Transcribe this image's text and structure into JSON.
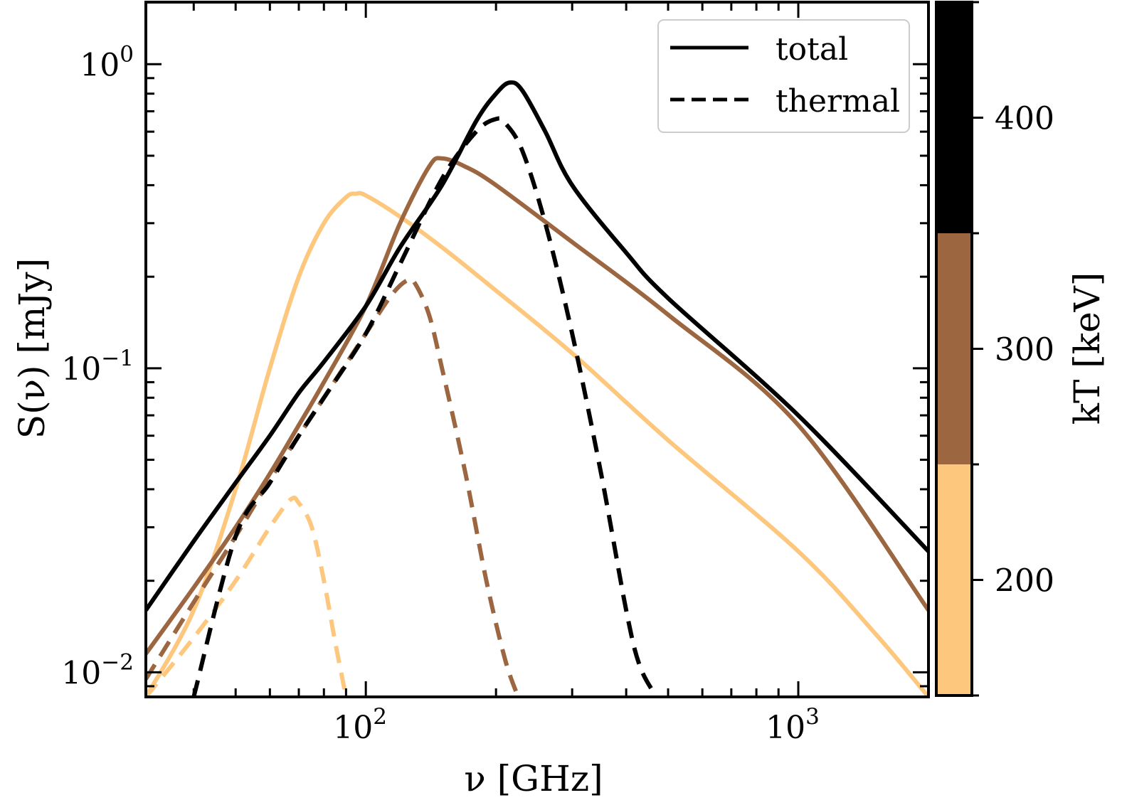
{
  "chart_data": {
    "type": "line",
    "xscale": "log",
    "yscale": "log",
    "xlabel": "ν [GHz]",
    "ylabel": "S(ν) [mJy]",
    "xlim": [
      31,
      2000
    ],
    "ylim": [
      0.0083,
      1.6
    ],
    "x_ticks": [
      {
        "value": 100,
        "base": "10",
        "exp": "2"
      },
      {
        "value": 1000,
        "base": "10",
        "exp": "3"
      }
    ],
    "y_ticks": [
      {
        "value": 0.01,
        "base": "10",
        "exp": "−2"
      },
      {
        "value": 0.1,
        "base": "10",
        "exp": "−1"
      },
      {
        "value": 1,
        "base": "10",
        "exp": "0"
      }
    ],
    "legend": {
      "location": "top-right",
      "entries": [
        {
          "label": "total",
          "style": "solid"
        },
        {
          "label": "thermal",
          "style": "dashed"
        }
      ]
    },
    "colorbar": {
      "label": "kT [keV]",
      "range": [
        150,
        450
      ],
      "ticks": [
        200,
        300,
        400
      ],
      "bins": [
        {
          "from": 150,
          "to": 250,
          "color": "#fec77e"
        },
        {
          "from": 250,
          "to": 350,
          "color": "#9b6640"
        },
        {
          "from": 350,
          "to": 450,
          "color": "#000000"
        }
      ]
    },
    "series": [
      {
        "name": "total kT=200 keV",
        "kT": 200,
        "style": "solid",
        "color": "#fec77e",
        "x": [
          31,
          40,
          50,
          60,
          70,
          80,
          90,
          95,
          100,
          120,
          150,
          200,
          300,
          500,
          1000,
          1500,
          2000
        ],
        "y": [
          0.0083,
          0.016,
          0.04,
          0.1,
          0.2,
          0.3,
          0.365,
          0.375,
          0.37,
          0.315,
          0.25,
          0.18,
          0.112,
          0.058,
          0.025,
          0.0135,
          0.0083
        ]
      },
      {
        "name": "thermal kT=200 keV",
        "kT": 200,
        "style": "dashed",
        "color": "#fec77e",
        "x": [
          31,
          40,
          50,
          60,
          67,
          70,
          75,
          80,
          85,
          90
        ],
        "y": [
          0.0083,
          0.013,
          0.02,
          0.03,
          0.037,
          0.036,
          0.03,
          0.02,
          0.0125,
          0.0083
        ]
      },
      {
        "name": "total kT=300 keV",
        "kT": 300,
        "style": "solid",
        "color": "#9b6640",
        "x": [
          31,
          40,
          50,
          60,
          70,
          80,
          100,
          120,
          140,
          150,
          170,
          200,
          300,
          500,
          1000,
          2000
        ],
        "y": [
          0.0115,
          0.019,
          0.03,
          0.045,
          0.065,
          0.09,
          0.16,
          0.3,
          0.46,
          0.49,
          0.46,
          0.4,
          0.26,
          0.15,
          0.065,
          0.016
        ]
      },
      {
        "name": "thermal kT=300 keV",
        "kT": 300,
        "style": "dashed",
        "color": "#9b6640",
        "x": [
          31,
          40,
          50,
          60,
          70,
          80,
          100,
          115,
          125,
          130,
          140,
          150,
          170,
          190,
          210,
          225
        ],
        "y": [
          0.0095,
          0.017,
          0.028,
          0.043,
          0.06,
          0.08,
          0.13,
          0.175,
          0.195,
          0.19,
          0.15,
          0.1,
          0.045,
          0.02,
          0.011,
          0.0083
        ]
      },
      {
        "name": "total kT=400 keV",
        "kT": 400,
        "style": "solid",
        "color": "#000000",
        "x": [
          31,
          40,
          50,
          60,
          70,
          80,
          100,
          120,
          150,
          180,
          200,
          215,
          230,
          260,
          300,
          400,
          500,
          1000,
          2000
        ],
        "y": [
          0.016,
          0.027,
          0.042,
          0.06,
          0.083,
          0.105,
          0.16,
          0.25,
          0.4,
          0.65,
          0.8,
          0.87,
          0.82,
          0.6,
          0.4,
          0.24,
          0.17,
          0.07,
          0.025
        ]
      },
      {
        "name": "thermal kT=400 keV",
        "kT": 400,
        "style": "dashed",
        "color": "#000000",
        "x": [
          40,
          50,
          60,
          70,
          80,
          100,
          120,
          150,
          180,
          200,
          210,
          230,
          260,
          300,
          350,
          400,
          430,
          470
        ],
        "y": [
          0.0083,
          0.028,
          0.042,
          0.06,
          0.08,
          0.13,
          0.22,
          0.42,
          0.6,
          0.66,
          0.64,
          0.52,
          0.3,
          0.13,
          0.045,
          0.016,
          0.0105,
          0.0083
        ]
      }
    ]
  }
}
